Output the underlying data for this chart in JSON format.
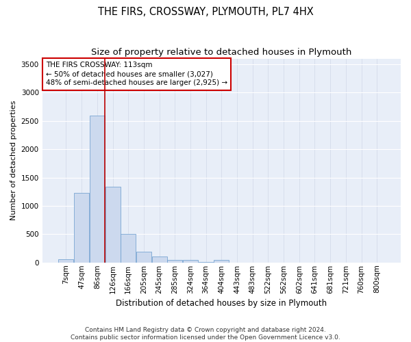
{
  "title": "THE FIRS, CROSSWAY, PLYMOUTH, PL7 4HX",
  "subtitle": "Size of property relative to detached houses in Plymouth",
  "xlabel": "Distribution of detached houses by size in Plymouth",
  "ylabel": "Number of detached properties",
  "bar_color": "#ccd9ee",
  "bar_edge_color": "#6699cc",
  "background_color": "#e8eef8",
  "grid_color": "#ffffff",
  "categories": [
    "7sqm",
    "47sqm",
    "86sqm",
    "126sqm",
    "166sqm",
    "205sqm",
    "245sqm",
    "285sqm",
    "324sqm",
    "364sqm",
    "404sqm",
    "443sqm",
    "483sqm",
    "522sqm",
    "562sqm",
    "602sqm",
    "641sqm",
    "681sqm",
    "721sqm",
    "760sqm",
    "800sqm"
  ],
  "values": [
    55,
    1225,
    2590,
    1340,
    500,
    190,
    105,
    50,
    40,
    5,
    50,
    0,
    0,
    0,
    0,
    0,
    0,
    0,
    0,
    0,
    0
  ],
  "ylim": [
    0,
    3600
  ],
  "yticks": [
    0,
    500,
    1000,
    1500,
    2000,
    2500,
    3000,
    3500
  ],
  "vline_x": 2.5,
  "vline_color": "#bb0000",
  "annotation_text": "THE FIRS CROSSWAY: 113sqm\n← 50% of detached houses are smaller (3,027)\n48% of semi-detached houses are larger (2,925) →",
  "footer_text": "Contains HM Land Registry data © Crown copyright and database right 2024.\nContains public sector information licensed under the Open Government Licence v3.0.",
  "title_fontsize": 10.5,
  "subtitle_fontsize": 9.5,
  "xlabel_fontsize": 8.5,
  "ylabel_fontsize": 8,
  "tick_fontsize": 7.5,
  "annotation_fontsize": 7.5,
  "footer_fontsize": 6.5
}
